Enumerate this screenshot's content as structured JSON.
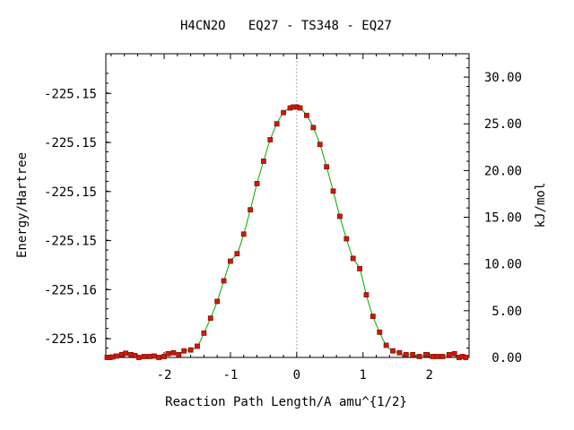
{
  "chart_data": {
    "type": "line",
    "title": "H4CN2O   EQ27 - TS348 - EQ27",
    "xlabel": "Reaction Path Length/A amu^{1/2}",
    "ylabel_left": "Energy/Hartree",
    "ylabel_right": "kJ/mol",
    "xlim": [
      -2.88,
      2.6
    ],
    "x_ticks": [
      -2,
      -1,
      0,
      1,
      2
    ],
    "x_tick_labels": [
      "-2",
      "-1",
      "0",
      "1",
      "2"
    ],
    "ylim_right": [
      0.0,
      32.5
    ],
    "y_left_ticks_kj": [
      2.0,
      7.25,
      12.5,
      17.75,
      23.0,
      28.25
    ],
    "y_left_tick_labels": [
      "-225.16",
      "-225.16",
      "-225.15",
      "-225.15",
      "-225.15",
      "-225.15"
    ],
    "y_right_ticks": [
      0,
      5,
      10,
      15,
      20,
      25,
      30
    ],
    "y_right_tick_labels": [
      "0.00",
      "5.00",
      "10.00",
      "15.00",
      "20.00",
      "25.00",
      "30.00"
    ],
    "ts_x": 0.0,
    "line_color": "#00aa00",
    "marker_color": "#dd1111",
    "marker_edge_color": "#7a1a00",
    "series": [
      {
        "values_x": [
          -2.86,
          -2.82,
          -2.78,
          -2.72,
          -2.64,
          -2.58,
          -2.5,
          -2.44,
          -2.38,
          -2.3,
          -2.22,
          -2.15,
          -2.08,
          -2.0,
          -1.94,
          -1.86,
          -1.78,
          -1.7,
          -1.6,
          -1.5,
          -1.4,
          -1.3,
          -1.2,
          -1.1,
          -1.0,
          -0.9,
          -0.8,
          -0.7,
          -0.6,
          -0.5,
          -0.4,
          -0.3,
          -0.2,
          -0.1,
          -0.05,
          0.0,
          0.05,
          0.15,
          0.25,
          0.35,
          0.45,
          0.55,
          0.65,
          0.75,
          0.85,
          0.95,
          1.05,
          1.15,
          1.25,
          1.35,
          1.45,
          1.55,
          1.65,
          1.75,
          1.85,
          1.95,
          2.05,
          2.12,
          2.2,
          2.3,
          2.38,
          2.45,
          2.5,
          2.55
        ],
        "values_y": [
          0.0,
          0.0,
          0.05,
          0.15,
          0.3,
          0.45,
          0.3,
          0.2,
          0.0,
          0.1,
          0.1,
          0.15,
          0.0,
          0.1,
          0.4,
          0.5,
          0.3,
          0.7,
          0.8,
          1.2,
          2.6,
          4.2,
          6.0,
          8.2,
          10.3,
          11.1,
          13.2,
          15.8,
          18.6,
          21.0,
          23.3,
          25.0,
          26.2,
          26.7,
          26.8,
          26.8,
          26.7,
          25.9,
          24.6,
          22.8,
          20.4,
          17.8,
          15.1,
          12.7,
          10.6,
          9.5,
          6.7,
          4.4,
          2.7,
          1.3,
          0.7,
          0.5,
          0.3,
          0.3,
          0.1,
          0.3,
          0.1,
          0.1,
          0.1,
          0.3,
          0.4,
          0.0,
          0.1,
          0.0
        ]
      }
    ]
  }
}
